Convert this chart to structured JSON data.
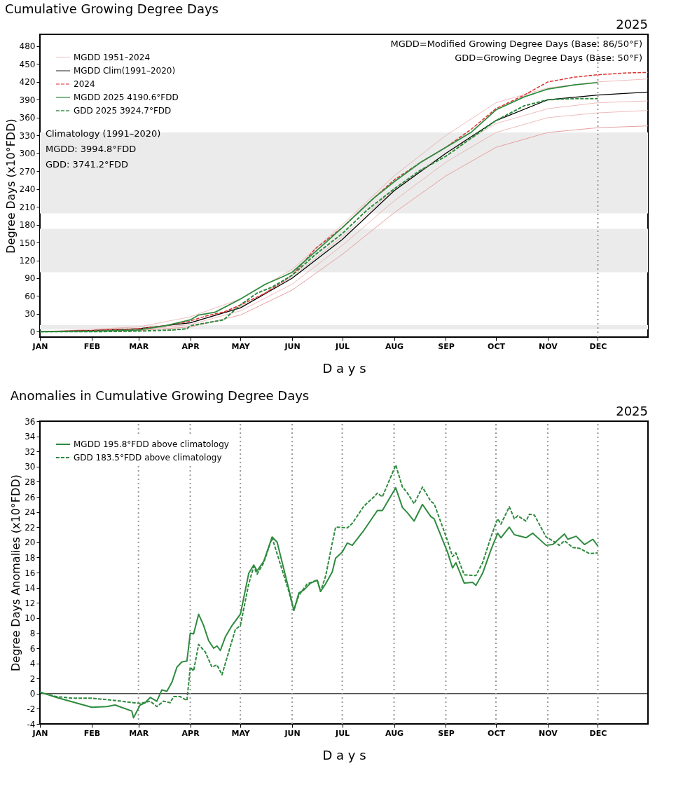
{
  "chart_data": [
    {
      "type": "line",
      "title": "Cumulative Growing Degree Days",
      "subtitle": "2025",
      "xlabel": "D a y s",
      "ylabel": "Degree Days (x10°FDD)",
      "xlim": [
        "--01-01",
        "--12-31"
      ],
      "xticks": [
        {
          "value": "--01-01",
          "label": "JAN"
        },
        {
          "value": "--02-01",
          "label": "FEB"
        },
        {
          "value": "--03-01",
          "label": "MAR"
        },
        {
          "value": "--04-01",
          "label": "APR"
        },
        {
          "value": "--05-01",
          "label": "MAY"
        },
        {
          "value": "--06-01",
          "label": "JUN"
        },
        {
          "value": "--07-01",
          "label": "JUL"
        },
        {
          "value": "--08-01",
          "label": "AUG"
        },
        {
          "value": "--09-01",
          "label": "SEP"
        },
        {
          "value": "--10-01",
          "label": "OCT"
        },
        {
          "value": "--11-01",
          "label": "NOV"
        },
        {
          "value": "--12-01",
          "label": "DEC"
        }
      ],
      "ylim": [
        -9,
        500
      ],
      "yticks": [
        0,
        30,
        60,
        90,
        120,
        150,
        180,
        210,
        240,
        270,
        300,
        330,
        360,
        390,
        420,
        450,
        480
      ],
      "grid": false,
      "marker": "none",
      "legend": "top left",
      "bands": [
        {
          "axis": "y",
          "from": 4,
          "to": 11,
          "color": "#ebebeb"
        },
        {
          "axis": "y",
          "from": 100,
          "to": 173,
          "color": "#ebebeb"
        },
        {
          "axis": "y",
          "from": 199,
          "to": 335,
          "color": "#ebebeb"
        }
      ],
      "ref_lines": [
        {
          "axis": "x",
          "value": "--12-01",
          "color": "#999999",
          "line_style": "dotted"
        }
      ],
      "annotations": [
        "MGDD=Modified Growing Degree Days (Base: 86/50°F)",
        "GDD=Growing Degree Days (Base: 50°F)",
        "Climatology (1991–2020)",
        "MGDD:  3994.8°FDD",
        "GDD:    3741.2°FDD"
      ],
      "series": [
        {
          "color": "#e8a0a0",
          "x": [
            "--01-01",
            "--03-01",
            "--04-01",
            "--05-01",
            "--06-01",
            "--07-01",
            "--08-01",
            "--09-01",
            "--10-01",
            "--11-01",
            "--12-01",
            "--12-31"
          ],
          "values": [
            0,
            8,
            25,
            55,
            105,
            180,
            262,
            330,
            385,
            410,
            420,
            425
          ]
        },
        {
          "color": "#e8a0a0",
          "x": [
            "--01-01",
            "--03-01",
            "--04-01",
            "--05-01",
            "--06-01",
            "--07-01",
            "--08-01",
            "--09-01",
            "--10-01",
            "--11-01",
            "--12-01",
            "--12-31"
          ],
          "values": [
            0,
            5,
            15,
            42,
            92,
            160,
            240,
            300,
            350,
            375,
            385,
            388
          ]
        },
        {
          "color": "#e8a0a0",
          "x": [
            "--01-01",
            "--03-01",
            "--04-01",
            "--05-01",
            "--06-01",
            "--07-01",
            "--08-01",
            "--09-01",
            "--10-01",
            "--11-01",
            "--12-01",
            "--12-31"
          ],
          "values": [
            0,
            3,
            12,
            35,
            80,
            145,
            220,
            285,
            335,
            360,
            368,
            372
          ]
        },
        {
          "name": "MGDD 1951–2024",
          "color": "#e8a0a0",
          "x": [
            "--01-01",
            "--03-01",
            "--04-01",
            "--05-01",
            "--06-01",
            "--07-01",
            "--08-01",
            "--09-01",
            "--10-01",
            "--11-01",
            "--12-01",
            "--12-31"
          ],
          "values": [
            0,
            2,
            8,
            28,
            70,
            130,
            200,
            262,
            310,
            335,
            343,
            346
          ]
        },
        {
          "name": "MGDD Clim(1991–2020)",
          "color": "#000000",
          "line_style": "solid",
          "x": [
            "--01-01",
            "--02-01",
            "--03-01",
            "--04-01",
            "--05-01",
            "--06-01",
            "--07-01",
            "--08-01",
            "--09-01",
            "--10-01",
            "--11-01",
            "--12-01",
            "--12-31"
          ],
          "values": [
            0,
            2,
            5,
            15,
            40,
            90,
            155,
            237,
            300,
            355,
            390,
            398,
            403
          ]
        },
        {
          "name": "2024",
          "color": "#e03030",
          "line_style": "dashed",
          "x": [
            "--01-01",
            "--02-01",
            "--03-01",
            "--03-17",
            "--04-01",
            "--04-11",
            "--04-21",
            "--05-01",
            "--05-16",
            "--06-01",
            "--06-15",
            "--07-01",
            "--07-16",
            "--08-01",
            "--08-17",
            "--09-01",
            "--09-16",
            "--10-01",
            "--10-18",
            "--11-01",
            "--11-17",
            "--12-01",
            "--12-17",
            "--12-31"
          ],
          "values": [
            0,
            2,
            5,
            10,
            18,
            27,
            33,
            45,
            65,
            95,
            140,
            175,
            215,
            255,
            285,
            310,
            340,
            375,
            398,
            420,
            428,
            432,
            435,
            436
          ]
        },
        {
          "name": "MGDD 2025  4190.6°FDD",
          "color": "#2e8b3e",
          "line_style": "solid",
          "x": [
            "--01-01",
            "--02-01",
            "--03-01",
            "--03-17",
            "--04-01",
            "--04-06",
            "--04-16",
            "--05-01",
            "--05-16",
            "--05-26",
            "--06-01",
            "--06-15",
            "--07-01",
            "--07-20",
            "--08-01",
            "--08-17",
            "--09-01",
            "--09-16",
            "--10-01",
            "--10-18",
            "--11-01",
            "--11-17",
            "--12-01"
          ],
          "values": [
            0,
            1,
            3,
            10,
            20,
            28,
            33,
            55,
            80,
            92,
            100,
            135,
            175,
            225,
            252,
            285,
            310,
            335,
            373,
            395,
            408,
            415,
            419
          ]
        },
        {
          "name": "GDD 2025  3924.7°FDD",
          "color": "#2e8b3e",
          "line_style": "dashed",
          "x": [
            "--01-01",
            "--02-01",
            "--03-01",
            "--03-22",
            "--03-30",
            "--04-01",
            "--04-11",
            "--04-21",
            "--05-01",
            "--05-11",
            "--05-20",
            "--06-01",
            "--06-15",
            "--07-01",
            "--07-16",
            "--08-01",
            "--08-17",
            "--09-01",
            "--09-16",
            "--10-01",
            "--10-18",
            "--11-01",
            "--11-17",
            "--12-01"
          ],
          "values": [
            0,
            0,
            1,
            3,
            5,
            10,
            15,
            20,
            45,
            65,
            75,
            95,
            130,
            165,
            205,
            240,
            272,
            295,
            325,
            355,
            380,
            390,
            392,
            392
          ]
        }
      ]
    },
    {
      "type": "line",
      "title": "Anomalies in Cumulative Growing Degree Days",
      "subtitle": "2025",
      "xlabel": "D a y s",
      "ylabel": "Degree Days Anomalies (x10°FDD)",
      "xlim": [
        "--01-01",
        "--12-31"
      ],
      "xticks": [
        {
          "value": "--01-01",
          "label": "JAN"
        },
        {
          "value": "--02-01",
          "label": "FEB"
        },
        {
          "value": "--03-01",
          "label": "MAR"
        },
        {
          "value": "--04-01",
          "label": "APR"
        },
        {
          "value": "--05-01",
          "label": "MAY"
        },
        {
          "value": "--06-01",
          "label": "JUN"
        },
        {
          "value": "--07-01",
          "label": "JUL"
        },
        {
          "value": "--08-01",
          "label": "AUG"
        },
        {
          "value": "--09-01",
          "label": "SEP"
        },
        {
          "value": "--10-01",
          "label": "OCT"
        },
        {
          "value": "--11-01",
          "label": "NOV"
        },
        {
          "value": "--12-01",
          "label": "DEC"
        }
      ],
      "ylim": [
        -4,
        36
      ],
      "yticks": [
        -4,
        -2,
        0,
        2,
        4,
        6,
        8,
        10,
        12,
        14,
        16,
        18,
        20,
        22,
        24,
        26,
        28,
        30,
        32,
        34,
        36
      ],
      "grid": false,
      "marker": "none",
      "legend": "top left",
      "ref_lines": [
        {
          "axis": "y",
          "value": 0,
          "color": "#000000",
          "line_style": "solid"
        },
        {
          "axis": "x",
          "value": "--03-01",
          "color": "#999999",
          "line_style": "dotted"
        },
        {
          "axis": "x",
          "value": "--04-01",
          "color": "#999999",
          "line_style": "dotted"
        },
        {
          "axis": "x",
          "value": "--05-01",
          "color": "#999999",
          "line_style": "dotted"
        },
        {
          "axis": "x",
          "value": "--06-01",
          "color": "#999999",
          "line_style": "dotted"
        },
        {
          "axis": "x",
          "value": "--07-01",
          "color": "#999999",
          "line_style": "dotted"
        },
        {
          "axis": "x",
          "value": "--08-01",
          "color": "#999999",
          "line_style": "dotted"
        },
        {
          "axis": "x",
          "value": "--09-01",
          "color": "#999999",
          "line_style": "dotted"
        },
        {
          "axis": "x",
          "value": "--10-01",
          "color": "#999999",
          "line_style": "dotted"
        },
        {
          "axis": "x",
          "value": "--11-01",
          "color": "#999999",
          "line_style": "dotted"
        },
        {
          "axis": "x",
          "value": "--12-01",
          "color": "#999999",
          "line_style": "dotted"
        }
      ],
      "series": [
        {
          "name": "MGDD  195.8°FDD above climatology",
          "color": "#2e8b3e",
          "line_style": "solid",
          "x": [
            "--01-01",
            "--01-11",
            "--02-01",
            "--02-10",
            "--02-15",
            "--02-25",
            "--02-26",
            "--03-02",
            "--03-05",
            "--03-08",
            "--03-12",
            "--03-15",
            "--03-18",
            "--03-21",
            "--03-24",
            "--03-27",
            "--03-30",
            "--04-01",
            "--04-03",
            "--04-06",
            "--04-09",
            "--04-12",
            "--04-15",
            "--04-17",
            "--04-19",
            "--04-22",
            "--04-26",
            "--05-01",
            "--05-06",
            "--05-09",
            "--05-11",
            "--05-15",
            "--05-20",
            "--05-23",
            "--05-30",
            "--06-02",
            "--06-05",
            "--06-08",
            "--06-12",
            "--06-16",
            "--06-18",
            "--06-21",
            "--06-25",
            "--06-27",
            "--07-01",
            "--07-04",
            "--07-07",
            "--07-14",
            "--07-22",
            "--07-25",
            "--08-02",
            "--08-06",
            "--08-09",
            "--08-13",
            "--08-18",
            "--08-23",
            "--08-25",
            "--09-02",
            "--09-05",
            "--09-07",
            "--09-12",
            "--09-17",
            "--09-19",
            "--09-23",
            "--09-28",
            "--10-02",
            "--10-04",
            "--10-09",
            "--10-12",
            "--10-19",
            "--10-23",
            "--10-31",
            "--11-04",
            "--11-11",
            "--11-13",
            "--11-18",
            "--11-23",
            "--11-28",
            "--12-01"
          ],
          "values": [
            0.2,
            -0.5,
            -1.8,
            -1.7,
            -1.5,
            -2.3,
            -3.2,
            -1.5,
            -1.2,
            -0.5,
            -1.0,
            0.5,
            0.3,
            1.5,
            3.5,
            4.2,
            4.3,
            8,
            7.9,
            10.5,
            9,
            7,
            6,
            6.3,
            5.7,
            7.5,
            9,
            10.5,
            15.9,
            17,
            16.2,
            17.5,
            20.7,
            20,
            13.8,
            11,
            13.3,
            13.7,
            14.6,
            15,
            13.5,
            14.5,
            16.1,
            17.9,
            18.7,
            19.9,
            19.6,
            21.6,
            24.2,
            24.2,
            27.2,
            24.6,
            23.9,
            22.8,
            25,
            23.4,
            23.1,
            18.7,
            16.6,
            17.3,
            14.6,
            14.7,
            14.3,
            15.9,
            19,
            21.2,
            20.6,
            22,
            21,
            20.6,
            21.2,
            19.6,
            19.7,
            21.1,
            20.4,
            20.8,
            19.7,
            20.4,
            19.5
          ]
        },
        {
          "name": "GDD  183.5°FDD above climatology",
          "color": "#2e8b3e",
          "line_style": "dashed",
          "x": [
            "--01-01",
            "--01-11",
            "--01-21",
            "--02-01",
            "--02-15",
            "--02-26",
            "--03-02",
            "--03-08",
            "--03-12",
            "--03-16",
            "--03-20",
            "--03-22",
            "--03-26",
            "--03-30",
            "--04-01",
            "--04-03",
            "--04-06",
            "--04-10",
            "--04-14",
            "--04-17",
            "--04-20",
            "--04-24",
            "--04-28",
            "--05-01",
            "--05-06",
            "--05-09",
            "--05-11",
            "--05-15",
            "--05-20",
            "--05-30",
            "--06-02",
            "--06-05",
            "--06-10",
            "--06-16",
            "--06-18",
            "--06-21",
            "--06-25",
            "--06-27",
            "--07-04",
            "--07-07",
            "--07-14",
            "--07-20",
            "--07-22",
            "--07-25",
            "--08-02",
            "--08-06",
            "--08-09",
            "--08-13",
            "--08-18",
            "--08-23",
            "--08-25",
            "--09-02",
            "--09-05",
            "--09-07",
            "--09-12",
            "--09-19",
            "--09-23",
            "--09-28",
            "--10-02",
            "--10-04",
            "--10-09",
            "--10-12",
            "--10-14",
            "--10-19",
            "--10-21",
            "--10-24",
            "--10-31",
            "--11-04",
            "--11-08",
            "--11-11",
            "--11-16",
            "--11-20",
            "--11-26",
            "--12-01"
          ],
          "values": [
            0.2,
            -0.4,
            -0.6,
            -0.6,
            -0.9,
            -1.2,
            -1.3,
            -1.0,
            -1.7,
            -1.0,
            -1.2,
            -0.4,
            -0.4,
            -0.9,
            3.5,
            3,
            6.5,
            5.5,
            3.5,
            3.8,
            2.5,
            5.5,
            8.5,
            9,
            14.5,
            16.8,
            15.8,
            17.3,
            20.6,
            13.5,
            11,
            13,
            14.5,
            15,
            13.5,
            15.5,
            19.9,
            22,
            21.9,
            22.5,
            24.8,
            26,
            26.5,
            26,
            30.2,
            27.3,
            26.5,
            25.1,
            27.3,
            25.4,
            25.1,
            20.2,
            18.1,
            18.6,
            15.7,
            15.6,
            17.3,
            20.7,
            23.1,
            22.4,
            24.7,
            23.1,
            23.5,
            22.8,
            23.7,
            23.6,
            20.7,
            20.2,
            19.6,
            20.2,
            19.3,
            19.2,
            18.5,
            18.6
          ]
        }
      ]
    }
  ]
}
